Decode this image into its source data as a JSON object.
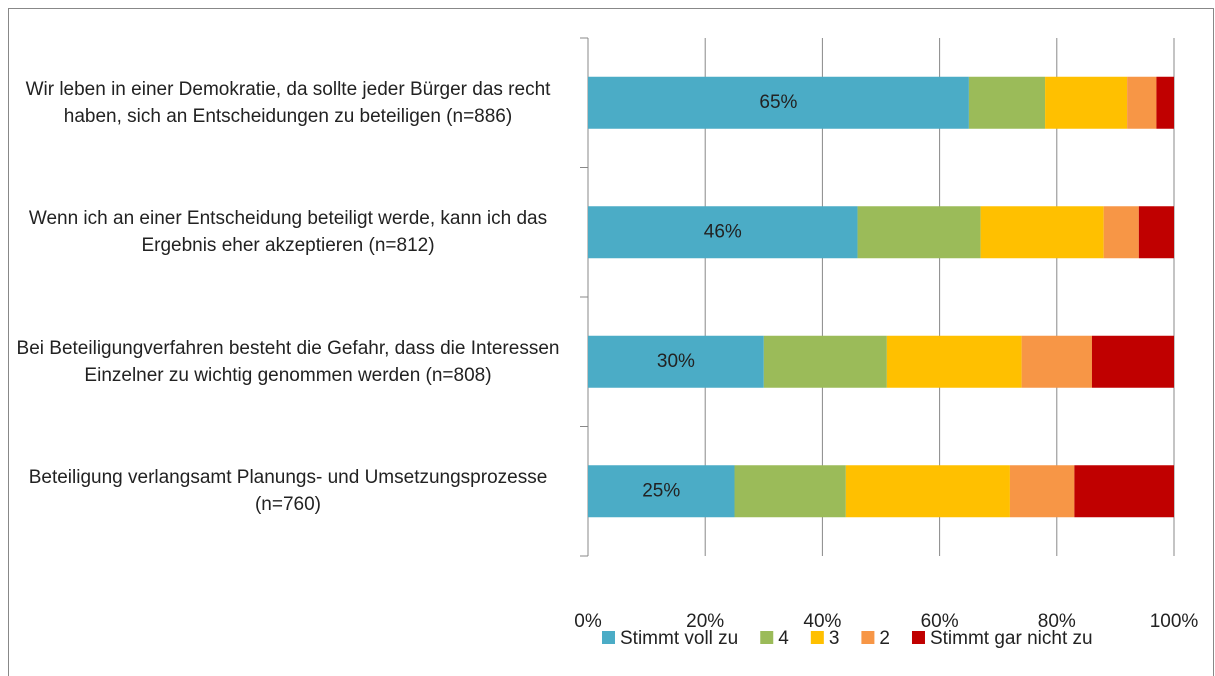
{
  "chart_data": {
    "type": "bar_stacked_horizontal",
    "categories": [
      "Wir leben in einer Demokratie, da sollte jeder Bürger das recht haben, sich an Entscheidungen zu beteiligen (n=886)",
      "Wenn ich an einer Entscheidung beteiligt werde, kann ich das Ergebnis eher akzeptieren (n=812)",
      "Bei Beteiligungverfahren besteht die Gefahr, dass die Interessen Einzelner zu wichtig genommen werden (n=808)",
      "Beteiligung verlangsamt Planungs- und Umsetzungsprozesse (n=760)"
    ],
    "series": [
      {
        "name": "Stimmt voll zu",
        "color": "#4bacc6",
        "values": [
          65,
          46,
          30,
          25
        ],
        "value_labels": [
          "65%",
          "46%",
          "30%",
          "25%"
        ]
      },
      {
        "name": "4",
        "color": "#9bbb59",
        "values": [
          13,
          21,
          21,
          19
        ]
      },
      {
        "name": "3",
        "color": "#ffc000",
        "values": [
          14,
          21,
          23,
          28
        ]
      },
      {
        "name": "2",
        "color": "#f79646",
        "values": [
          5,
          6,
          12,
          11
        ]
      },
      {
        "name": "Stimmt gar nicht zu",
        "color": "#c00000",
        "values": [
          3,
          6,
          14,
          17
        ]
      }
    ],
    "xlim": [
      0,
      100
    ],
    "xticks": [
      {
        "value": 0,
        "label": "0%"
      },
      {
        "value": 20,
        "label": "20%"
      },
      {
        "value": 40,
        "label": "40%"
      },
      {
        "value": 60,
        "label": "60%"
      },
      {
        "value": 80,
        "label": "80%"
      },
      {
        "value": 100,
        "label": "100%"
      }
    ],
    "grid": true,
    "legend": "bottom"
  }
}
